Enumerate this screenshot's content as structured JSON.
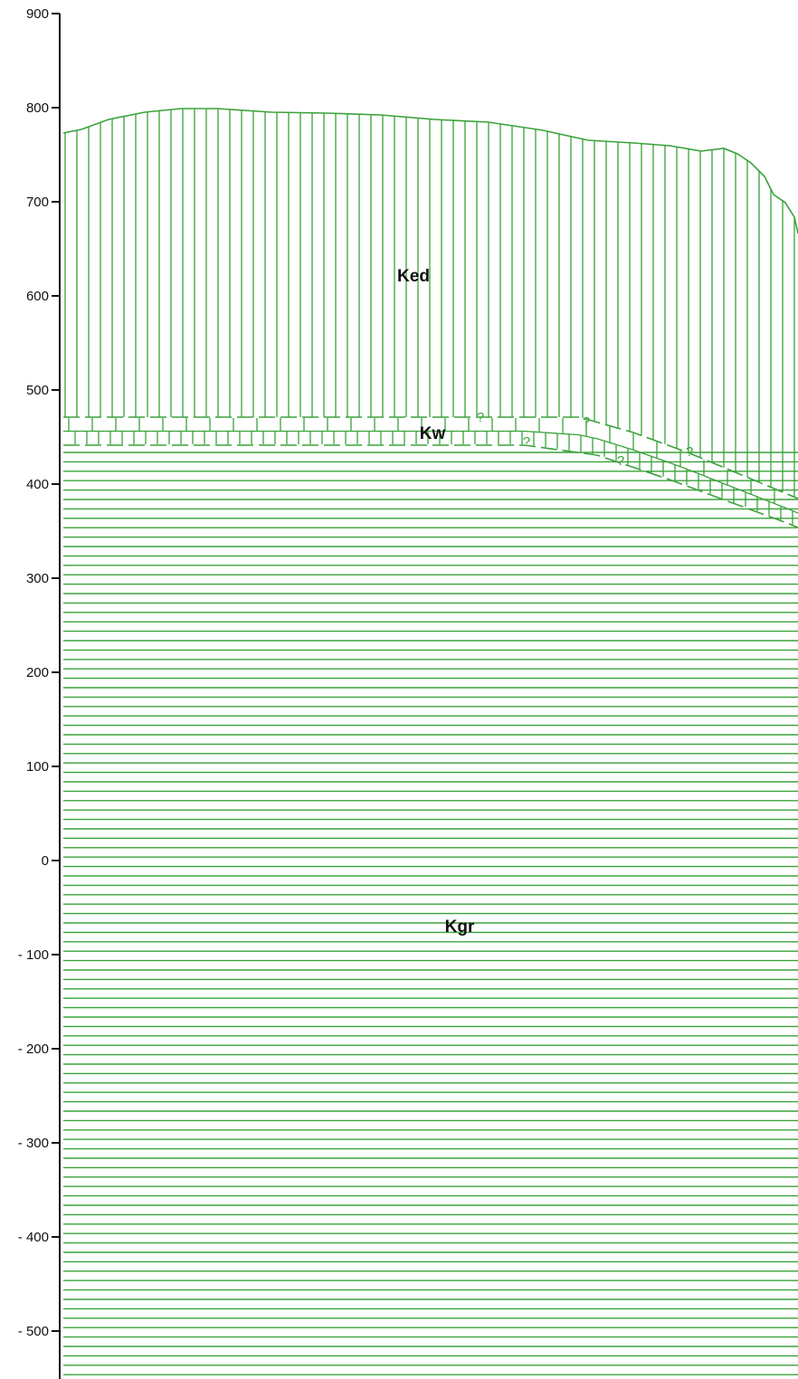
{
  "axis": {
    "ticks": [
      900,
      800,
      700,
      600,
      500,
      400,
      300,
      200,
      100,
      0,
      -100,
      -200,
      -300,
      -400,
      -500
    ],
    "tick_labels": [
      "900",
      "800",
      "700",
      "600",
      "500",
      "400",
      "300",
      "200",
      "100",
      "0",
      "- 100",
      "- 200",
      "- 300",
      "- 400",
      "- 500"
    ],
    "range": [
      -580,
      900
    ]
  },
  "units": [
    {
      "id": "Ked",
      "label": "Ked"
    },
    {
      "id": "Kw",
      "label": "Kw"
    },
    {
      "id": "Kgr",
      "label": "Kgr"
    }
  ],
  "uncertain_contact_marker": "?",
  "colors": {
    "pattern": "#3aa23a",
    "axis": "#111111",
    "background": "#ffffff"
  }
}
